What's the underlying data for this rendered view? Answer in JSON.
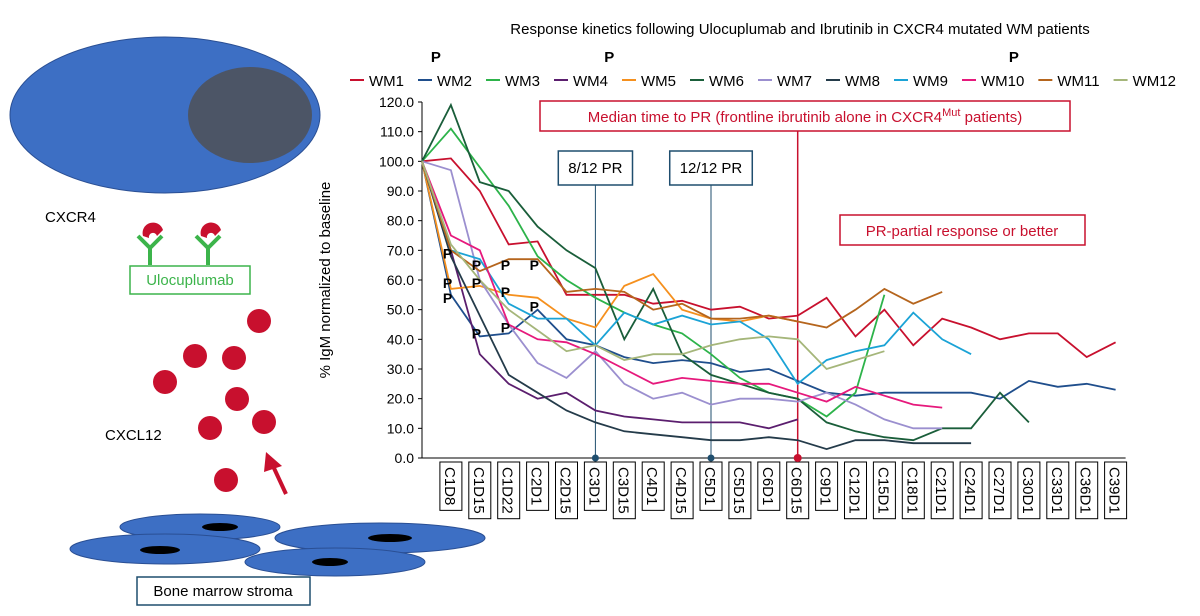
{
  "diagram": {
    "cell_label": "CXCR4",
    "drug_label": "Ulocuplumab",
    "ligand_label": "CXCL12",
    "stroma_label": "Bone marrow stroma"
  },
  "chart_data": {
    "type": "line",
    "title": "Response kinetics following Ulocuplumab and Ibrutinib in CXCR4 mutated WM patients",
    "y_label": "% IgM normalized to baseline",
    "categories": [
      null,
      "C1D8",
      "C1D15",
      "C1D22",
      "C2D1",
      "C2D15",
      "C3D1",
      "C3D15",
      "C4D1",
      "C4D15",
      "C5D1",
      "C5D15",
      "C6D1",
      "C6D15",
      "C9D1",
      "C12D1",
      "C15D1",
      "C18D1",
      "C21D1",
      "C24D1",
      "C27D1",
      "C30D1",
      "C33D1",
      "C36D1",
      "C39D1"
    ],
    "ylim": [
      0,
      120
    ],
    "yticks": [
      {
        "value": 0,
        "label": "0.0"
      },
      {
        "value": 10,
        "label": "10.0"
      },
      {
        "value": 20,
        "label": "20.0"
      },
      {
        "value": 30,
        "label": "30.0"
      },
      {
        "value": 40,
        "label": "40.0"
      },
      {
        "value": 50,
        "label": "50.0"
      },
      {
        "value": 60,
        "label": "60.0"
      },
      {
        "value": 70,
        "label": "70.0"
      },
      {
        "value": 80,
        "label": "80.0"
      },
      {
        "value": 90,
        "label": "90.0"
      },
      {
        "value": 100,
        "label": "100.0"
      },
      {
        "value": 110,
        "label": "110.0"
      },
      {
        "value": 120,
        "label": "120.0"
      }
    ],
    "series": [
      {
        "name": "WM1",
        "color": "#c8102e",
        "values": [
          100,
          101,
          90,
          72,
          73,
          55,
          55,
          55,
          52,
          53,
          50,
          51,
          47,
          48,
          54,
          41,
          50,
          38,
          47,
          44,
          40,
          42,
          42,
          34,
          39
        ]
      },
      {
        "name": "WM2",
        "color": "#1f4e8c",
        "values": [
          100,
          55,
          41,
          42,
          50,
          40,
          38,
          34,
          32,
          33,
          32,
          29,
          30,
          26,
          22,
          21,
          22,
          22,
          22,
          22,
          20,
          26,
          24,
          25,
          23
        ]
      },
      {
        "name": "WM3",
        "color": "#2db34a",
        "values": [
          100,
          111,
          98,
          85,
          68,
          60,
          54,
          49,
          45,
          42,
          35,
          27,
          22,
          20,
          14,
          22,
          55,
          null,
          null,
          null,
          null,
          null,
          null,
          null,
          null
        ]
      },
      {
        "name": "WM4",
        "color": "#5b1e6e",
        "values": [
          100,
          70,
          35,
          25,
          20,
          22,
          16,
          14,
          13,
          12,
          12,
          12,
          10,
          13,
          null,
          null,
          null,
          null,
          null,
          null,
          null,
          null,
          null,
          null,
          null
        ]
      },
      {
        "name": "WM5",
        "color": "#f5901e",
        "values": [
          100,
          57,
          58,
          55,
          54,
          47,
          44,
          58,
          62,
          50,
          47,
          46,
          48,
          46,
          null,
          null,
          null,
          null,
          null,
          null,
          null,
          null,
          null,
          null,
          null
        ]
      },
      {
        "name": "WM6",
        "color": "#1a5e3a",
        "values": [
          100,
          119,
          93,
          90,
          78,
          70,
          64,
          40,
          57,
          35,
          28,
          25,
          22,
          20,
          12,
          9,
          7,
          6,
          10,
          10,
          22,
          12,
          null,
          null,
          null
        ]
      },
      {
        "name": "WM7",
        "color": "#9b8fcf",
        "values": [
          100,
          97,
          60,
          45,
          32,
          27,
          36,
          25,
          20,
          22,
          18,
          20,
          20,
          19,
          22,
          18,
          13,
          10,
          10,
          null,
          null,
          null,
          null,
          null,
          null
        ]
      },
      {
        "name": "WM8",
        "color": "#243b4a",
        "values": [
          100,
          68,
          48,
          28,
          22,
          16,
          12,
          9,
          8,
          7,
          6,
          6,
          7,
          6,
          3,
          6,
          6,
          5,
          5,
          5,
          null,
          null,
          null,
          null,
          null
        ]
      },
      {
        "name": "WM9",
        "color": "#1ba3d6",
        "values": [
          100,
          70,
          67,
          52,
          47,
          47,
          38,
          49,
          45,
          48,
          45,
          46,
          40,
          25,
          33,
          36,
          38,
          49,
          40,
          35,
          null,
          null,
          null,
          null,
          null
        ]
      },
      {
        "name": "WM10",
        "color": "#e6197c",
        "values": [
          100,
          75,
          70,
          45,
          40,
          39,
          35,
          30,
          25,
          27,
          26,
          25,
          25,
          22,
          19,
          24,
          21,
          18,
          17,
          null,
          null,
          null,
          null,
          null,
          null
        ]
      },
      {
        "name": "WM11",
        "color": "#b5651d",
        "values": [
          100,
          70,
          63,
          67,
          67,
          56,
          57,
          56,
          50,
          52,
          47,
          47,
          48,
          46,
          44,
          50,
          57,
          52,
          56,
          null,
          null,
          null,
          null,
          null,
          null
        ]
      },
      {
        "name": "WM12",
        "color": "#a5b67a",
        "values": [
          100,
          72,
          60,
          50,
          43,
          36,
          38,
          33,
          35,
          35,
          38,
          40,
          41,
          40,
          30,
          33,
          36,
          null,
          null,
          null,
          null,
          null,
          null,
          null,
          null
        ]
      }
    ],
    "top_pr_labels": [
      {
        "text": "P",
        "category": "C1D8"
      },
      {
        "text": "P",
        "category": "C3D15"
      },
      {
        "text": "P",
        "category": "C30D1"
      }
    ],
    "pr_labels": [
      {
        "text": "P",
        "category": "C1D8",
        "value": 69
      },
      {
        "text": "P",
        "category": "C1D8",
        "value": 59
      },
      {
        "text": "P",
        "category": "C1D8",
        "value": 54
      },
      {
        "text": "P",
        "category": "C1D15",
        "value": 65
      },
      {
        "text": "P",
        "category": "C1D15",
        "value": 59
      },
      {
        "text": "P",
        "category": "C1D15",
        "value": 42
      },
      {
        "text": "P",
        "category": "C1D22",
        "value": 65
      },
      {
        "text": "P",
        "category": "C1D22",
        "value": 56
      },
      {
        "text": "P",
        "category": "C1D22",
        "value": 44
      },
      {
        "text": "P",
        "category": "C2D1",
        "value": 65
      },
      {
        "text": "P",
        "category": "C2D1",
        "value": 51
      }
    ],
    "annotations": [
      {
        "text": "8/12 PR",
        "category": "C3D1",
        "color": "#1f4e6e"
      },
      {
        "text": "12/12 PR",
        "category": "C5D1",
        "color": "#1f4e6e"
      }
    ],
    "median_marker": {
      "text_before": "Median time to PR (frontline ibrutinib alone in CXCR4",
      "superscript": "Mut",
      "text_after": " patients)",
      "category": "C6D15",
      "color": "#c8102e"
    },
    "note": "PR-partial response or better"
  }
}
